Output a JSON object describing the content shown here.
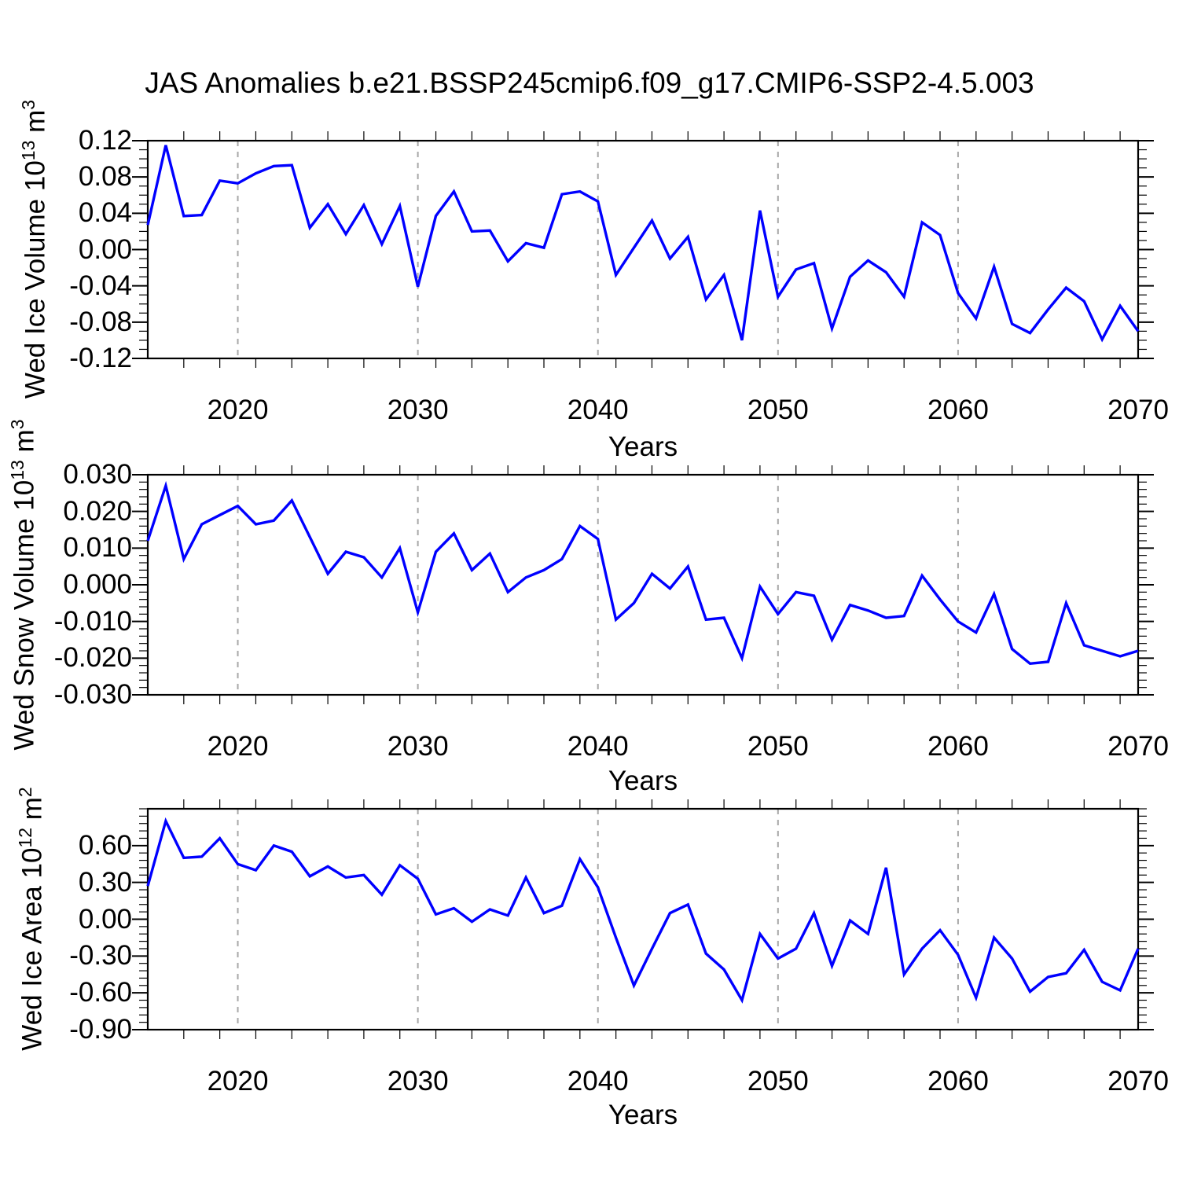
{
  "title": "JAS Anomalies b.e21.BSSP245cmip6.f09_g17.CMIP6-SSP2-4.5.003",
  "colors": {
    "line": "#0000ff",
    "grid": "#a8a8a8",
    "frame": "#000000",
    "tick": "#000000"
  },
  "chart_data": [
    {
      "type": "line",
      "name": "wed-ice-volume",
      "ylabel": {
        "base": "Wed Ice Volume 10",
        "exp": "13",
        "unit": " m",
        "unit_exp": "3"
      },
      "xlabel": "Years",
      "xlim": [
        2015,
        2070
      ],
      "ylim": [
        -0.12,
        0.12
      ],
      "yticks": [
        0.12,
        0.08,
        0.04,
        0.0,
        -0.04,
        -0.08,
        -0.12
      ],
      "ytick_labels": [
        "0.12",
        "0.08",
        "0.04",
        "0.00",
        "-0.04",
        "-0.08",
        "-0.12"
      ],
      "yminor_step": 0.01,
      "xticks": [
        2020,
        2030,
        2040,
        2050,
        2060,
        2070
      ],
      "xtick_labels": [
        "2020",
        "2030",
        "2040",
        "2050",
        "2060",
        "2070"
      ],
      "xminor_step": 2,
      "gridlines_x": [
        2020,
        2030,
        2040,
        2050,
        2060
      ],
      "grid": true,
      "legend": "none",
      "x_start": 2015,
      "values": [
        0.027,
        0.115,
        0.037,
        0.038,
        0.076,
        0.073,
        0.084,
        0.092,
        0.093,
        0.024,
        0.05,
        0.017,
        0.049,
        0.006,
        0.048,
        -0.041,
        0.037,
        0.064,
        0.02,
        0.021,
        -0.013,
        0.007,
        0.002,
        0.061,
        0.064,
        0.053,
        -0.028,
        0.002,
        0.032,
        -0.01,
        0.014,
        -0.055,
        -0.028,
        -0.1,
        0.043,
        -0.052,
        -0.022,
        -0.015,
        -0.087,
        -0.03,
        -0.012,
        -0.025,
        -0.052,
        0.03,
        0.016,
        -0.048,
        -0.076,
        -0.019,
        -0.082,
        -0.092,
        -0.066,
        -0.042,
        -0.057,
        -0.099,
        -0.062,
        -0.09
      ]
    },
    {
      "type": "line",
      "name": "wed-snow-volume",
      "ylabel": {
        "base": "Wed Snow Volume 10",
        "exp": "13",
        "unit": " m",
        "unit_exp": "3"
      },
      "xlabel": "Years",
      "xlim": [
        2015,
        2070
      ],
      "ylim": [
        -0.03,
        0.03
      ],
      "yticks": [
        0.03,
        0.02,
        0.01,
        0.0,
        -0.01,
        -0.02,
        -0.03
      ],
      "ytick_labels": [
        "0.030",
        "0.020",
        "0.010",
        "0.000",
        "-0.010",
        "-0.020",
        "-0.030"
      ],
      "yminor_step": 0.002,
      "xticks": [
        2020,
        2030,
        2040,
        2050,
        2060,
        2070
      ],
      "xtick_labels": [
        "2020",
        "2030",
        "2040",
        "2050",
        "2060",
        "2070"
      ],
      "xminor_step": 2,
      "gridlines_x": [
        2020,
        2030,
        2040,
        2050,
        2060
      ],
      "grid": true,
      "legend": "none",
      "x_start": 2015,
      "values": [
        0.012,
        0.027,
        0.007,
        0.0165,
        0.019,
        0.0215,
        0.0165,
        0.0175,
        0.023,
        0.013,
        0.003,
        0.009,
        0.0075,
        0.002,
        0.01,
        -0.0075,
        0.009,
        0.014,
        0.004,
        0.0085,
        -0.002,
        0.002,
        0.004,
        0.007,
        0.016,
        0.0125,
        -0.0095,
        -0.005,
        0.003,
        -0.001,
        0.005,
        -0.0095,
        -0.009,
        -0.02,
        -0.0005,
        -0.008,
        -0.002,
        -0.003,
        -0.015,
        -0.0055,
        -0.007,
        -0.009,
        -0.0085,
        0.0025,
        -0.004,
        -0.01,
        -0.013,
        -0.0025,
        -0.0175,
        -0.0215,
        -0.021,
        -0.005,
        -0.0165,
        -0.018,
        -0.0195,
        -0.018
      ]
    },
    {
      "type": "line",
      "name": "wed-ice-area",
      "ylabel": {
        "base": "Wed Ice Area 10",
        "exp": "12",
        "unit": " m",
        "unit_exp": "2"
      },
      "xlabel": "Years",
      "xlim": [
        2015,
        2070
      ],
      "ylim": [
        -0.9,
        0.9
      ],
      "yticks": [
        0.6,
        0.3,
        0.0,
        -0.3,
        -0.6,
        -0.9
      ],
      "ytick_labels": [
        "0.60",
        "0.30",
        "0.00",
        "-0.30",
        "-0.60",
        "-0.90"
      ],
      "yminor_step": 0.06,
      "xticks": [
        2020,
        2030,
        2040,
        2050,
        2060,
        2070
      ],
      "xtick_labels": [
        "2020",
        "2030",
        "2040",
        "2050",
        "2060",
        "2070"
      ],
      "xminor_step": 2,
      "gridlines_x": [
        2020,
        2030,
        2040,
        2050,
        2060
      ],
      "grid": true,
      "legend": "none",
      "x_start": 2015,
      "values": [
        0.27,
        0.8,
        0.5,
        0.51,
        0.66,
        0.45,
        0.4,
        0.6,
        0.55,
        0.35,
        0.43,
        0.34,
        0.36,
        0.2,
        0.44,
        0.33,
        0.04,
        0.09,
        -0.02,
        0.08,
        0.03,
        0.34,
        0.05,
        0.11,
        0.49,
        0.26,
        -0.15,
        -0.54,
        -0.24,
        0.05,
        0.12,
        -0.28,
        -0.41,
        -0.66,
        -0.12,
        -0.32,
        -0.24,
        0.05,
        -0.38,
        -0.01,
        -0.12,
        0.42,
        -0.45,
        -0.24,
        -0.09,
        -0.29,
        -0.64,
        -0.15,
        -0.32,
        -0.59,
        -0.47,
        -0.44,
        -0.25,
        -0.51,
        -0.58,
        -0.24
      ]
    }
  ]
}
